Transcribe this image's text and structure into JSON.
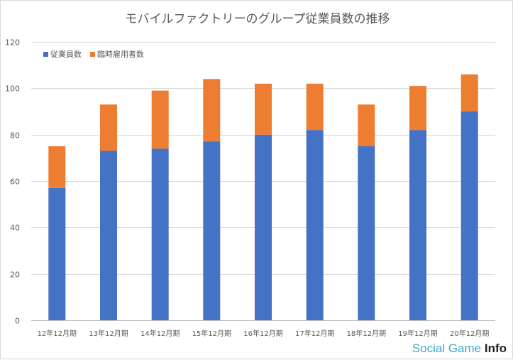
{
  "chart_data": {
    "type": "bar",
    "stacked": true,
    "title": "モバイルファクトリーのグループ従業員数の推移",
    "xlabel": "",
    "ylabel": "",
    "ylim": [
      0,
      120
    ],
    "yticks": [
      0,
      20,
      40,
      60,
      80,
      100,
      120
    ],
    "grid": true,
    "legend_position": "top-left",
    "categories": [
      "12年12月期",
      "13年12月期",
      "14年12月期",
      "15年12月期",
      "16年12月期",
      "17年12月期",
      "18年12月期",
      "19年12月期",
      "20年12月期"
    ],
    "series": [
      {
        "name": "従業員数",
        "color": "#4472c4",
        "values": [
          57,
          73,
          74,
          77,
          80,
          82,
          75,
          82,
          90
        ]
      },
      {
        "name": "臨時雇用者数",
        "color": "#ed7d31",
        "values": [
          18,
          20,
          25,
          27,
          22,
          20,
          18,
          19,
          16
        ]
      }
    ]
  },
  "watermark": {
    "main": "Social Game ",
    "accent": "Info"
  }
}
